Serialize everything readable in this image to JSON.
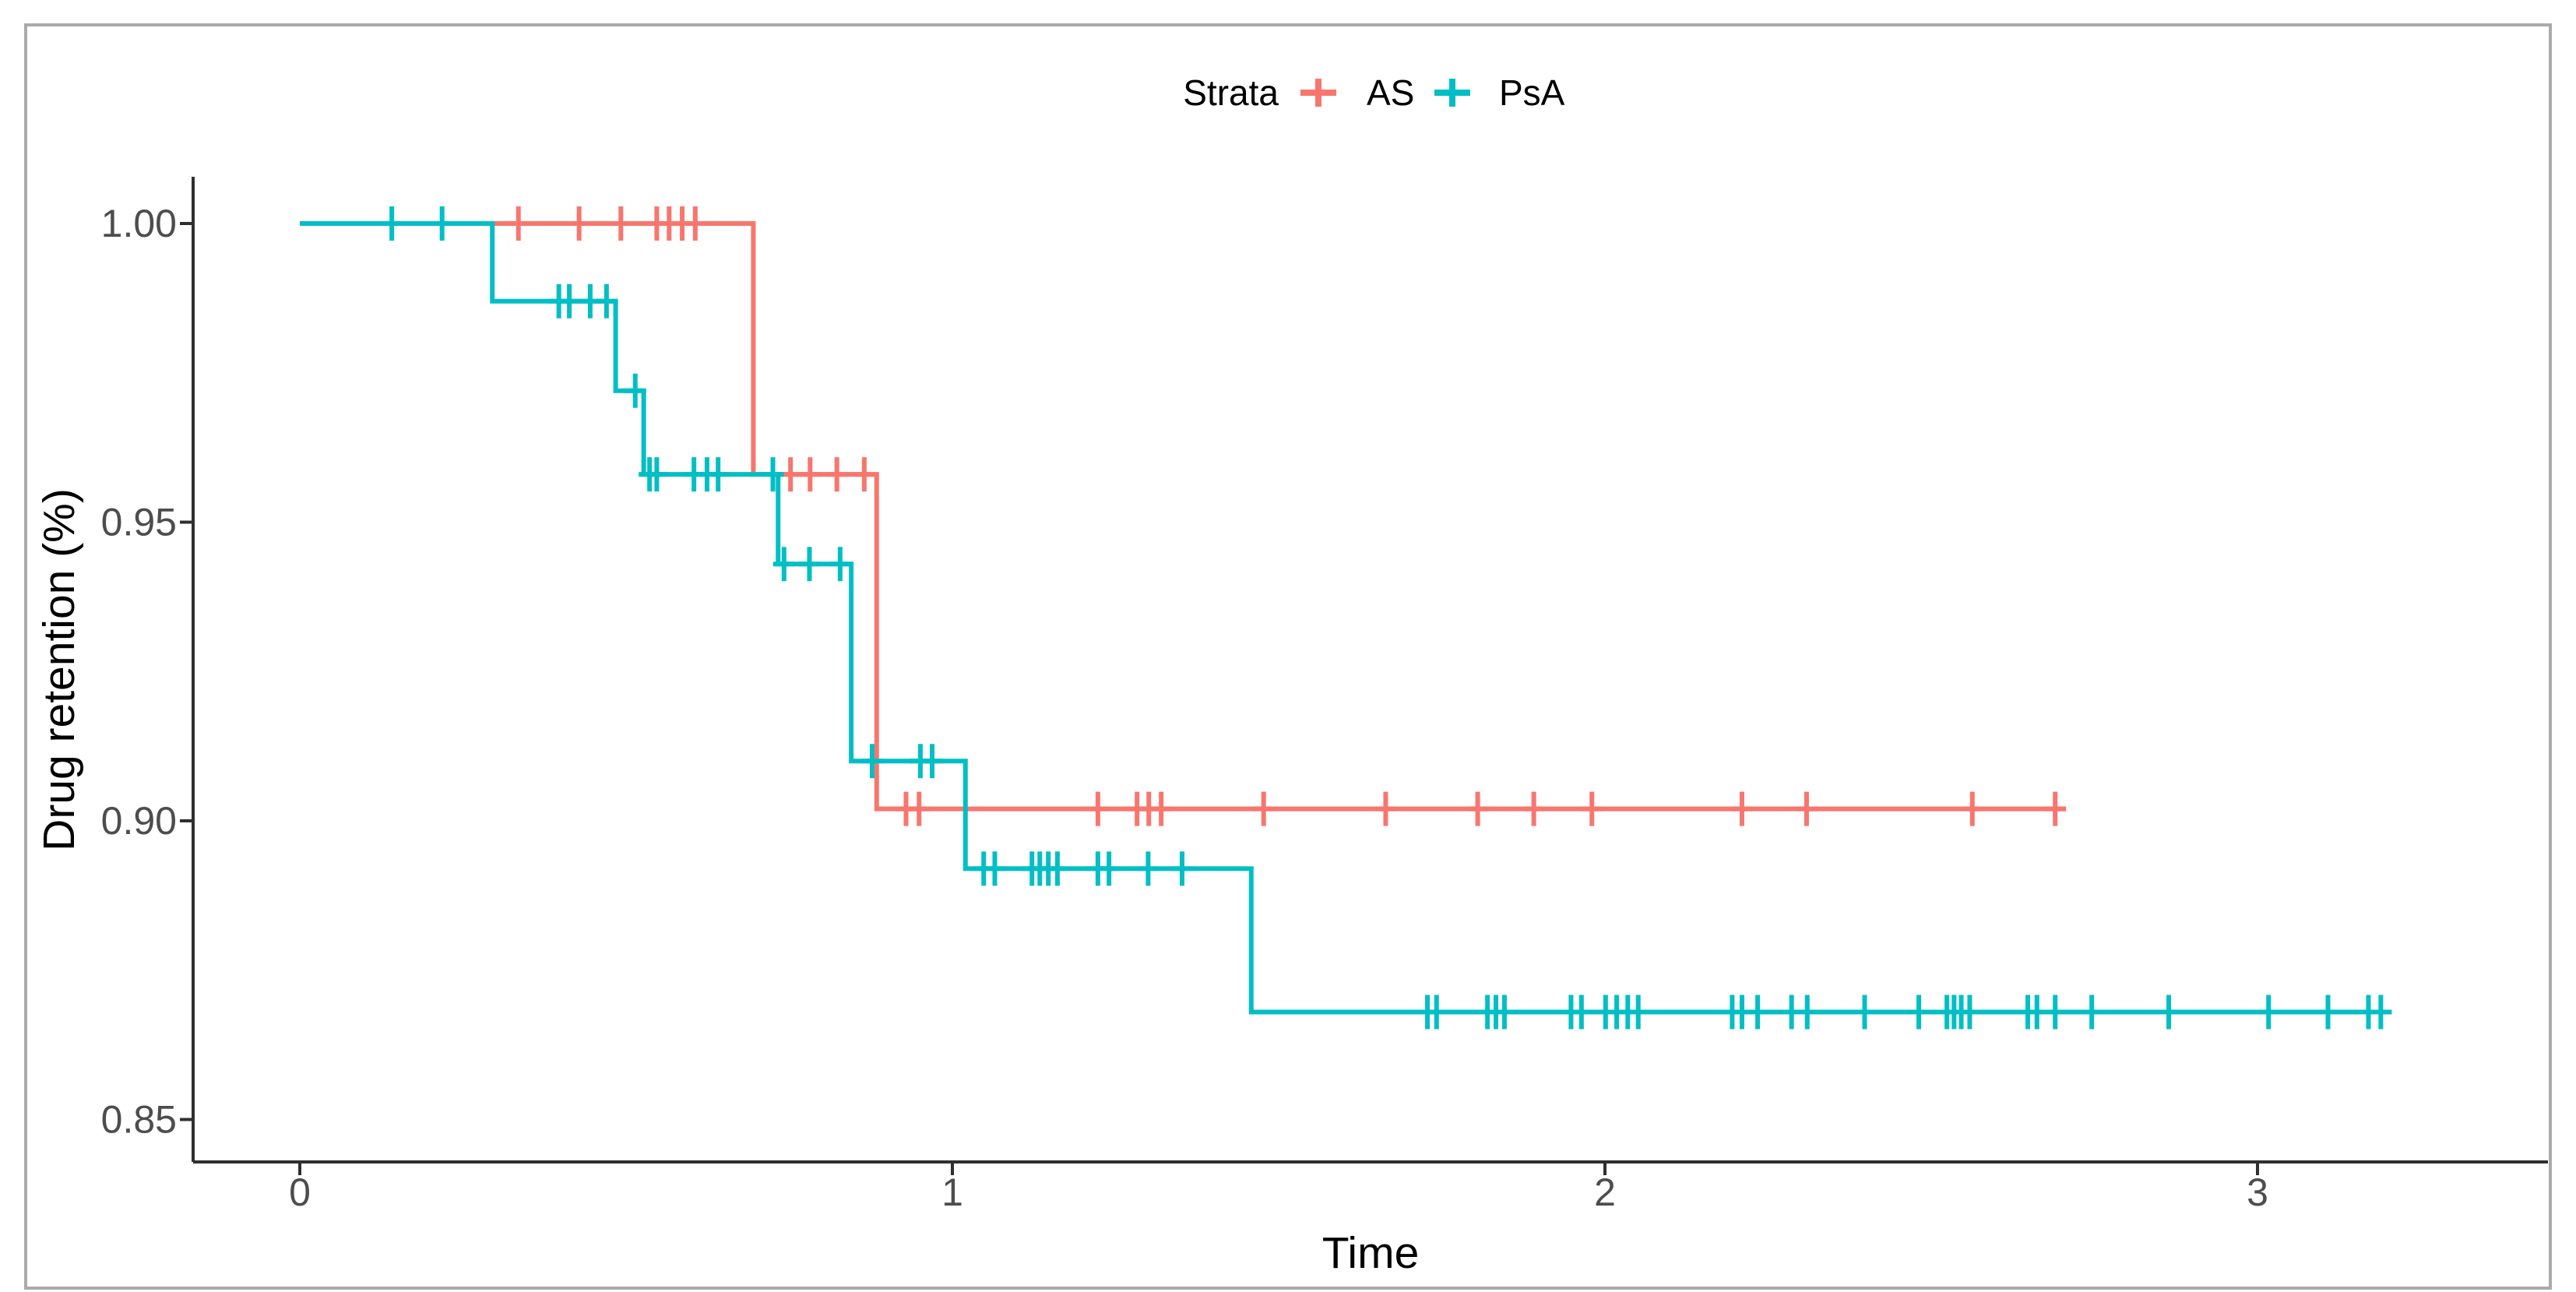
{
  "figure": {
    "x_axis": {
      "title": "Time",
      "tick_labels": [
        "0",
        "1",
        "2",
        "3"
      ]
    },
    "y_axis": {
      "title": "Drug retention (%)",
      "tick_labels": [
        "1.00",
        "0.95",
        "0.90",
        "0.85"
      ]
    },
    "legend": {
      "title": "Strata",
      "items": [
        {
          "label": "AS"
        },
        {
          "label": "PsA"
        }
      ]
    }
  },
  "chart_data": {
    "type": "line",
    "subtype": "kaplan-meier-step",
    "title": "",
    "xlabel": "Time",
    "ylabel": "Drug retention (%)",
    "xlim": [
      -0.16,
      3.45
    ],
    "ylim": [
      0.843,
      1.008
    ],
    "x_ticks": [
      0,
      1,
      2,
      3
    ],
    "x_tick_labels": [
      "0",
      "1",
      "2",
      "3"
    ],
    "y_ticks": [
      1.0,
      0.95,
      0.9,
      0.85
    ],
    "y_tick_labels": [
      "1.00",
      "0.95",
      "0.90",
      "0.85"
    ],
    "grid": false,
    "legend_title": "Strata",
    "legend_position": "top-center",
    "series": [
      {
        "name": "AS",
        "color": "#F8766D",
        "steps": [
          {
            "t": 0.0,
            "s": 1.0
          },
          {
            "t": 0.695,
            "s": 0.958
          },
          {
            "t": 0.884,
            "s": 0.902
          }
        ],
        "end_t": 2.706,
        "censors": [
          [
            0.335,
            1.0
          ],
          [
            0.428,
            1.0
          ],
          [
            0.492,
            1.0
          ],
          [
            0.547,
            1.0
          ],
          [
            0.566,
            1.0
          ],
          [
            0.586,
            1.0
          ],
          [
            0.606,
            1.0
          ],
          [
            0.752,
            0.958
          ],
          [
            0.782,
            0.958
          ],
          [
            0.823,
            0.958
          ],
          [
            0.865,
            0.958
          ],
          [
            0.929,
            0.902
          ],
          [
            0.949,
            0.902
          ],
          [
            1.223,
            0.902
          ],
          [
            1.283,
            0.902
          ],
          [
            1.301,
            0.902
          ],
          [
            1.32,
            0.902
          ],
          [
            1.477,
            0.902
          ],
          [
            1.664,
            0.902
          ],
          [
            1.805,
            0.902
          ],
          [
            1.891,
            0.902
          ],
          [
            1.98,
            0.902
          ],
          [
            2.21,
            0.902
          ],
          [
            2.309,
            0.902
          ],
          [
            2.563,
            0.902
          ],
          [
            2.69,
            0.902
          ]
        ]
      },
      {
        "name": "PsA",
        "color": "#00BFC4",
        "steps": [
          {
            "t": 0.0,
            "s": 1.0
          },
          {
            "t": 0.295,
            "s": 0.987
          },
          {
            "t": 0.484,
            "s": 0.972
          },
          {
            "t": 0.527,
            "s": 0.958
          },
          {
            "t": 0.733,
            "s": 0.943
          },
          {
            "t": 0.845,
            "s": 0.91
          },
          {
            "t": 1.02,
            "s": 0.892
          },
          {
            "t": 1.458,
            "s": 0.868
          }
        ],
        "end_t": 3.198,
        "censors": [
          [
            0.141,
            1.0
          ],
          [
            0.218,
            1.0
          ],
          [
            0.397,
            0.987
          ],
          [
            0.413,
            0.987
          ],
          [
            0.445,
            0.987
          ],
          [
            0.47,
            0.987
          ],
          [
            0.514,
            0.972
          ],
          [
            0.536,
            0.958
          ],
          [
            0.547,
            0.958
          ],
          [
            0.604,
            0.958
          ],
          [
            0.624,
            0.958
          ],
          [
            0.641,
            0.958
          ],
          [
            0.725,
            0.958
          ],
          [
            0.742,
            0.943
          ],
          [
            0.781,
            0.943
          ],
          [
            0.828,
            0.943
          ],
          [
            0.877,
            0.91
          ],
          [
            0.951,
            0.91
          ],
          [
            0.969,
            0.91
          ],
          [
            1.048,
            0.892
          ],
          [
            1.065,
            0.892
          ],
          [
            1.122,
            0.892
          ],
          [
            1.134,
            0.892
          ],
          [
            1.147,
            0.892
          ],
          [
            1.161,
            0.892
          ],
          [
            1.223,
            0.892
          ],
          [
            1.24,
            0.892
          ],
          [
            1.3,
            0.892
          ],
          [
            1.352,
            0.892
          ],
          [
            1.728,
            0.868
          ],
          [
            1.742,
            0.868
          ],
          [
            1.82,
            0.868
          ],
          [
            1.833,
            0.868
          ],
          [
            1.846,
            0.868
          ],
          [
            1.948,
            0.868
          ],
          [
            1.964,
            0.868
          ],
          [
            2.001,
            0.868
          ],
          [
            2.018,
            0.868
          ],
          [
            2.035,
            0.868
          ],
          [
            2.051,
            0.868
          ],
          [
            2.195,
            0.868
          ],
          [
            2.21,
            0.868
          ],
          [
            2.234,
            0.868
          ],
          [
            2.286,
            0.868
          ],
          [
            2.31,
            0.868
          ],
          [
            2.398,
            0.868
          ],
          [
            2.481,
            0.868
          ],
          [
            2.524,
            0.868
          ],
          [
            2.535,
            0.868
          ],
          [
            2.546,
            0.868
          ],
          [
            2.559,
            0.868
          ],
          [
            2.648,
            0.868
          ],
          [
            2.662,
            0.868
          ],
          [
            2.69,
            0.868
          ],
          [
            2.746,
            0.868
          ],
          [
            2.864,
            0.868
          ],
          [
            3.017,
            0.868
          ],
          [
            3.108,
            0.868
          ],
          [
            3.17,
            0.868
          ],
          [
            3.189,
            0.868
          ]
        ]
      }
    ]
  }
}
